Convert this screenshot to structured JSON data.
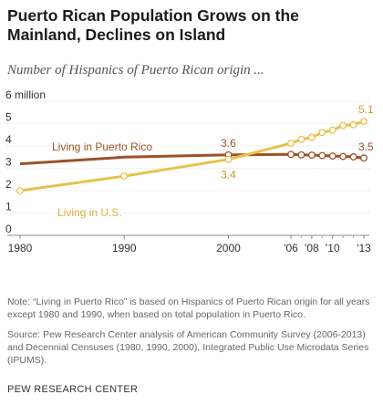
{
  "title": "Puerto Rican Population Grows on the Mainland, Declines on Island",
  "subtitle": "Number of Hispanics of Puerto Rican origin ...",
  "note": "Note: “Living in Puerto Rico” is based on Hispanics of Puerto Rican origin for all years except 1980 and 1990, when based on total population in Puerto Rico.",
  "source": "Source: Pew Research Center analysis of American Community Survey (2006-2013) and Decennial Censuses (1980, 1990, 2000), Integrated Public Use Microdata Series (IPUMS).",
  "brand": "PEW RESEARCH CENTER",
  "colors": {
    "puerto_rico": "#9c5227",
    "us": "#e6c24b"
  },
  "chart_data": {
    "type": "line",
    "ylim": [
      0,
      6
    ],
    "yticks": [
      {
        "value": 0,
        "label": "0"
      },
      {
        "value": 1,
        "label": "1"
      },
      {
        "value": 2,
        "label": "2"
      },
      {
        "value": 3,
        "label": "3"
      },
      {
        "value": 4,
        "label": "4"
      },
      {
        "value": 5,
        "label": "5"
      },
      {
        "value": 6,
        "label": "6 million"
      }
    ],
    "xlim": [
      1980,
      2013
    ],
    "xticks": [
      {
        "value": 1980,
        "label": "1980"
      },
      {
        "value": 1990,
        "label": "1990"
      },
      {
        "value": 2000,
        "label": "2000"
      },
      {
        "value": 2006,
        "label": "'06"
      },
      {
        "value": 2008,
        "label": "'08"
      },
      {
        "value": 2010,
        "label": "'10"
      },
      {
        "value": 2013,
        "label": "'13"
      }
    ],
    "grid": true,
    "series": [
      {
        "name": "Living in Puerto Rico",
        "key": "puerto_rico",
        "x": [
          1980,
          1990,
          2000,
          2006,
          2007,
          2008,
          2009,
          2010,
          2011,
          2012,
          2013
        ],
        "values": [
          3.2,
          3.5,
          3.6,
          3.62,
          3.6,
          3.59,
          3.57,
          3.55,
          3.53,
          3.51,
          3.46
        ],
        "markers_from": 2000,
        "labels": [
          {
            "x": 2000,
            "text": "3.6"
          },
          {
            "x": 2013,
            "text": "3.5"
          }
        ]
      },
      {
        "name": "Living in U.S.",
        "key": "us",
        "x": [
          1980,
          1990,
          2000,
          2006,
          2007,
          2008,
          2009,
          2010,
          2011,
          2012,
          2013
        ],
        "values": [
          2.0,
          2.65,
          3.4,
          4.12,
          4.3,
          4.38,
          4.6,
          4.7,
          4.92,
          4.95,
          5.1
        ],
        "markers_from": 1980,
        "labels": [
          {
            "x": 2000,
            "text": "3.4"
          },
          {
            "x": 2013,
            "text": "5.1"
          }
        ]
      }
    ]
  }
}
